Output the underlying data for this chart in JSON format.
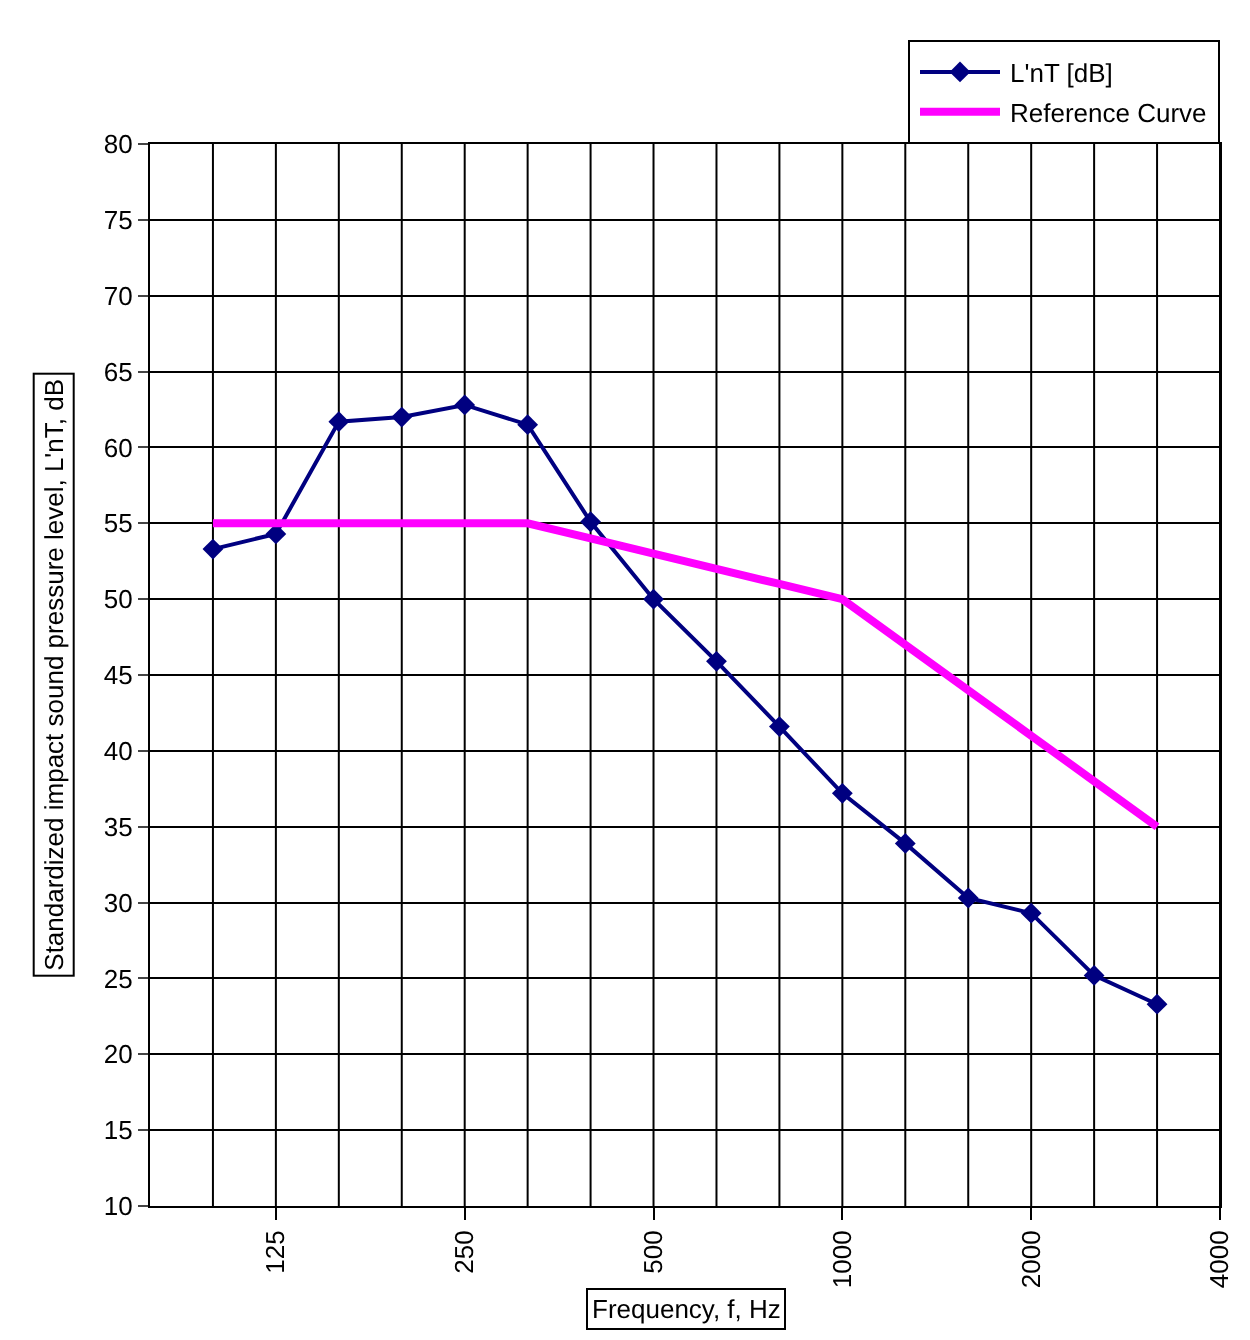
{
  "chart_data": {
    "type": "line",
    "xlabel": "Frequency, f, Hz",
    "ylabel": "Standardized impact sound pressure level, L'nT, dB",
    "categories": [
      null,
      "125",
      null,
      null,
      "250",
      null,
      null,
      "500",
      null,
      null,
      "1000",
      null,
      null,
      "2000",
      null,
      null,
      "4000"
    ],
    "series": [
      {
        "name": "L'nT [dB]",
        "color": "#000080",
        "marker": "diamond",
        "values": [
          53.3,
          54.3,
          61.7,
          62.0,
          62.8,
          61.5,
          55.1,
          50.0,
          45.9,
          41.6,
          37.2,
          33.9,
          30.3,
          29.3,
          25.2,
          23.3,
          null
        ]
      },
      {
        "name": "Reference Curve",
        "color": "#ff00ff",
        "marker": "none",
        "values": [
          55,
          55,
          55,
          55,
          55,
          55,
          54,
          53,
          52,
          51,
          50,
          47,
          44,
          41,
          38,
          35,
          null
        ]
      }
    ],
    "ylim": [
      10,
      80
    ],
    "yticks": [
      10,
      15,
      20,
      25,
      30,
      35,
      40,
      45,
      50,
      55,
      60,
      65,
      70,
      75,
      80
    ],
    "grid": true,
    "legend": "top right"
  }
}
